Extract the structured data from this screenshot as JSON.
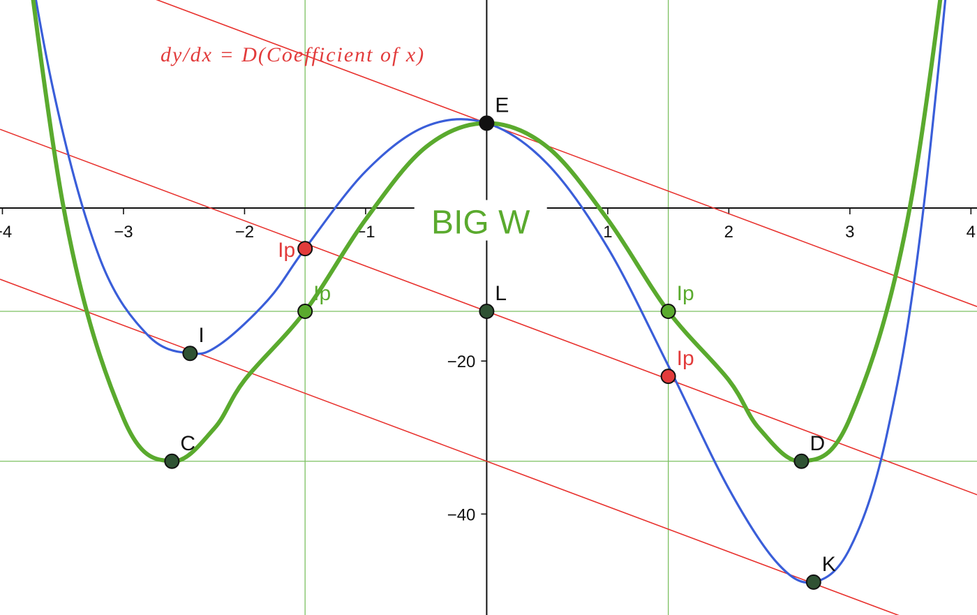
{
  "chart_data": {
    "type": "line",
    "title": "BIG W",
    "annotation": "dy/dx = D(Coefficient of x)",
    "xlim": [
      -4.02,
      4.05
    ],
    "ylim": [
      -53.2,
      27.2
    ],
    "x_ticks": [
      -4,
      -3,
      -2,
      -1,
      1,
      2,
      3,
      4
    ],
    "x_tick_labels": [
      "−4",
      "−3",
      "−2",
      "−1",
      "1",
      "2",
      "3",
      "4"
    ],
    "y_ticks": [
      -20,
      -40
    ],
    "y_tick_labels": [
      "−20",
      "−40"
    ],
    "grid": false,
    "series": [
      {
        "kind": "green-curve",
        "color": "#5aaa2e",
        "x": [
          -4.0,
          -3.5,
          -3.0,
          -2.6,
          -2.25,
          -2.0,
          -1.5,
          -1.0,
          -0.5,
          0.0,
          0.5,
          1.0,
          1.5,
          2.0,
          2.25,
          2.6,
          3.0,
          3.5,
          4.0
        ],
        "y": [
          59.1,
          0.5,
          -27.5,
          -33.1,
          -28.8,
          -22.5,
          -13.5,
          -1.5,
          8.0,
          11.1,
          8.0,
          -1.5,
          -13.5,
          -22.5,
          -28.8,
          -33.1,
          -27.5,
          0.5,
          59.1
        ]
      },
      {
        "kind": "blue-curve",
        "color": "#3a5ed9",
        "x": [
          -4.0,
          -3.6,
          -3.2,
          -2.8,
          -2.45,
          -2.2,
          -1.8,
          -1.5,
          -1.0,
          -0.5,
          0.0,
          0.5,
          1.0,
          1.5,
          2.0,
          2.4,
          2.7,
          3.0,
          3.3,
          3.6,
          4.0
        ],
        "y": [
          53.5,
          16.9,
          -6.4,
          -16.6,
          -19.0,
          -17.8,
          -11.9,
          -5.3,
          4.8,
          10.7,
          11.1,
          5.8,
          -5.2,
          -20.6,
          -36.7,
          -46.4,
          -48.9,
          -44.5,
          -30.0,
          -1.1,
          61.8
        ]
      }
    ],
    "lines": {
      "red_tangent_slope": -5.92,
      "red_intercepts": [
        11.1,
        -13.5,
        -33.1
      ],
      "red_color": "#e8322e",
      "green_horizontal_y": [
        -13.5,
        -33.1
      ],
      "green_vertical_x": [
        -1.5,
        1.5
      ],
      "green_line_color": "#7cc061"
    },
    "points": [
      {
        "name": "E",
        "x": 0.0,
        "y": 11.1,
        "fill": "#111111",
        "label_color": "#111111",
        "label_pos": "above-right"
      },
      {
        "name": "I",
        "x": -2.45,
        "y": -19.0,
        "fill": "#2f5233",
        "label_color": "#111111",
        "label_pos": "above-right"
      },
      {
        "name": "C",
        "x": -2.6,
        "y": -33.1,
        "fill": "#2f5233",
        "label_color": "#111111",
        "label_pos": "above-right"
      },
      {
        "name": "Ip",
        "x": -1.5,
        "y": -5.3,
        "fill": "#e23b3b",
        "label_color": "#e23b3b",
        "label_pos": "left"
      },
      {
        "name": "Ip",
        "x": -1.5,
        "y": -13.5,
        "fill": "#5aaa2e",
        "label_color": "#5aaa2e",
        "label_pos": "above-right"
      },
      {
        "name": "L",
        "x": 0.0,
        "y": -13.5,
        "fill": "#2f5233",
        "label_color": "#111111",
        "label_pos": "above-right"
      },
      {
        "name": "Ip",
        "x": 1.5,
        "y": -13.5,
        "fill": "#5aaa2e",
        "label_color": "#5aaa2e",
        "label_pos": "above-right"
      },
      {
        "name": "Ip",
        "x": 1.5,
        "y": -22.0,
        "fill": "#e23b3b",
        "label_color": "#e23b3b",
        "label_pos": "above-right"
      },
      {
        "name": "D",
        "x": 2.6,
        "y": -33.1,
        "fill": "#2f5233",
        "label_color": "#111111",
        "label_pos": "above-right"
      },
      {
        "name": "K",
        "x": 2.7,
        "y": -48.9,
        "fill": "#2f5233",
        "label_color": "#111111",
        "label_pos": "above-right"
      }
    ]
  }
}
